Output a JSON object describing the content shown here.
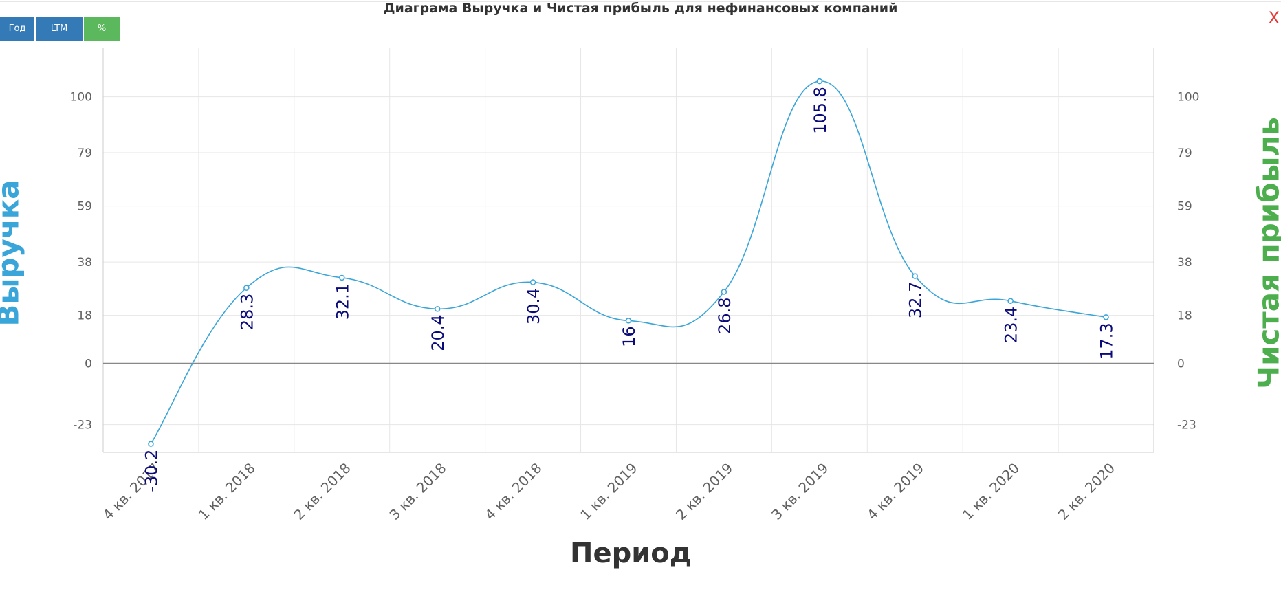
{
  "header": {
    "title": "Диаграма Выручка и Чистая прибыль для нефинансовых компаний",
    "close_label": "X"
  },
  "toolbar": {
    "year_label": "Год",
    "ltm_label": "LTM",
    "percent_label": "%"
  },
  "colors": {
    "line": "#3aa5d8",
    "left_axis_title": "#3aa5d8",
    "right_axis_title": "#4cae4c",
    "data_label": "#0a0a78",
    "button_blue": "#337ab7",
    "button_green": "#5cb85c",
    "close": "#e53935"
  },
  "chart_data": {
    "type": "line",
    "title": "Диаграма Выручка и Чистая прибыль для нефинансовых компаний",
    "xlabel": "Период",
    "ylabel": "Выручка",
    "y2label": "Чистая прибыль",
    "categories": [
      "4 кв. 2017",
      "1 кв. 2018",
      "2 кв. 2018",
      "3 кв. 2018",
      "4 кв. 2018",
      "1 кв. 2019",
      "2 кв. 2019",
      "3 кв. 2019",
      "4 кв. 2019",
      "1 кв. 2020",
      "2 кв. 2020"
    ],
    "series": [
      {
        "values": [
          -30.2,
          28.3,
          32.1,
          20.4,
          30.4,
          16,
          26.8,
          105.8,
          32.7,
          23.4,
          17.3
        ]
      }
    ],
    "data_labels": [
      "-30.2",
      "28.3",
      "32.1",
      "20.4",
      "30.4",
      "16",
      "26.8",
      "105.8",
      "32.7",
      "23.4",
      "17.3"
    ],
    "yticks": [
      -23,
      0,
      18,
      38,
      59,
      79,
      100
    ],
    "ytick_labels": [
      "-23",
      "0",
      "18",
      "38",
      "59",
      "79",
      "100"
    ],
    "ylim": [
      -33.4,
      118.2
    ],
    "y2ticks": [
      -23,
      0,
      18,
      38,
      59,
      79,
      100
    ],
    "y2tick_labels": [
      "-23",
      "0",
      "18",
      "38",
      "59",
      "79",
      "100"
    ],
    "grid": true,
    "legend": "none",
    "smooth": true
  }
}
